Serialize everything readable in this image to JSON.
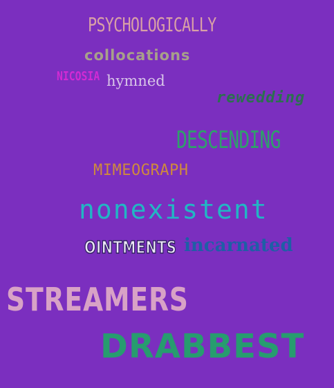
{
  "background_color": "#7b2fbf",
  "words": {
    "psychologically": {
      "text": "PSYCHOLOGICALLY",
      "color": "#d9a0a6"
    },
    "collocations": {
      "text": "collocations",
      "color": "#a8a08a"
    },
    "nicosia": {
      "text": "NICOSIA",
      "color": "#d22ad4"
    },
    "hymned": {
      "text": "hymned",
      "color": "#d8c6e8"
    },
    "rewedding": {
      "text": "rewedding",
      "color": "#2b6f4f"
    },
    "descending": {
      "text": "DESCENDING",
      "color": "#2fa06b"
    },
    "mimeograph": {
      "text": "MIMEOGRAPH",
      "color": "#cf8a3d"
    },
    "nonexistent": {
      "text": "nonexistent",
      "color": "#22b6c4"
    },
    "ointments": {
      "text": "OINTMENTS",
      "color": "#ece6f6"
    },
    "incarnated": {
      "text": "incarnated",
      "color": "#1e5fa6"
    },
    "streamers": {
      "text": "STREAMERS",
      "color": "#d8a2c6"
    },
    "drabbest": {
      "text": "DRABBEST",
      "color": "#279c6f"
    }
  }
}
